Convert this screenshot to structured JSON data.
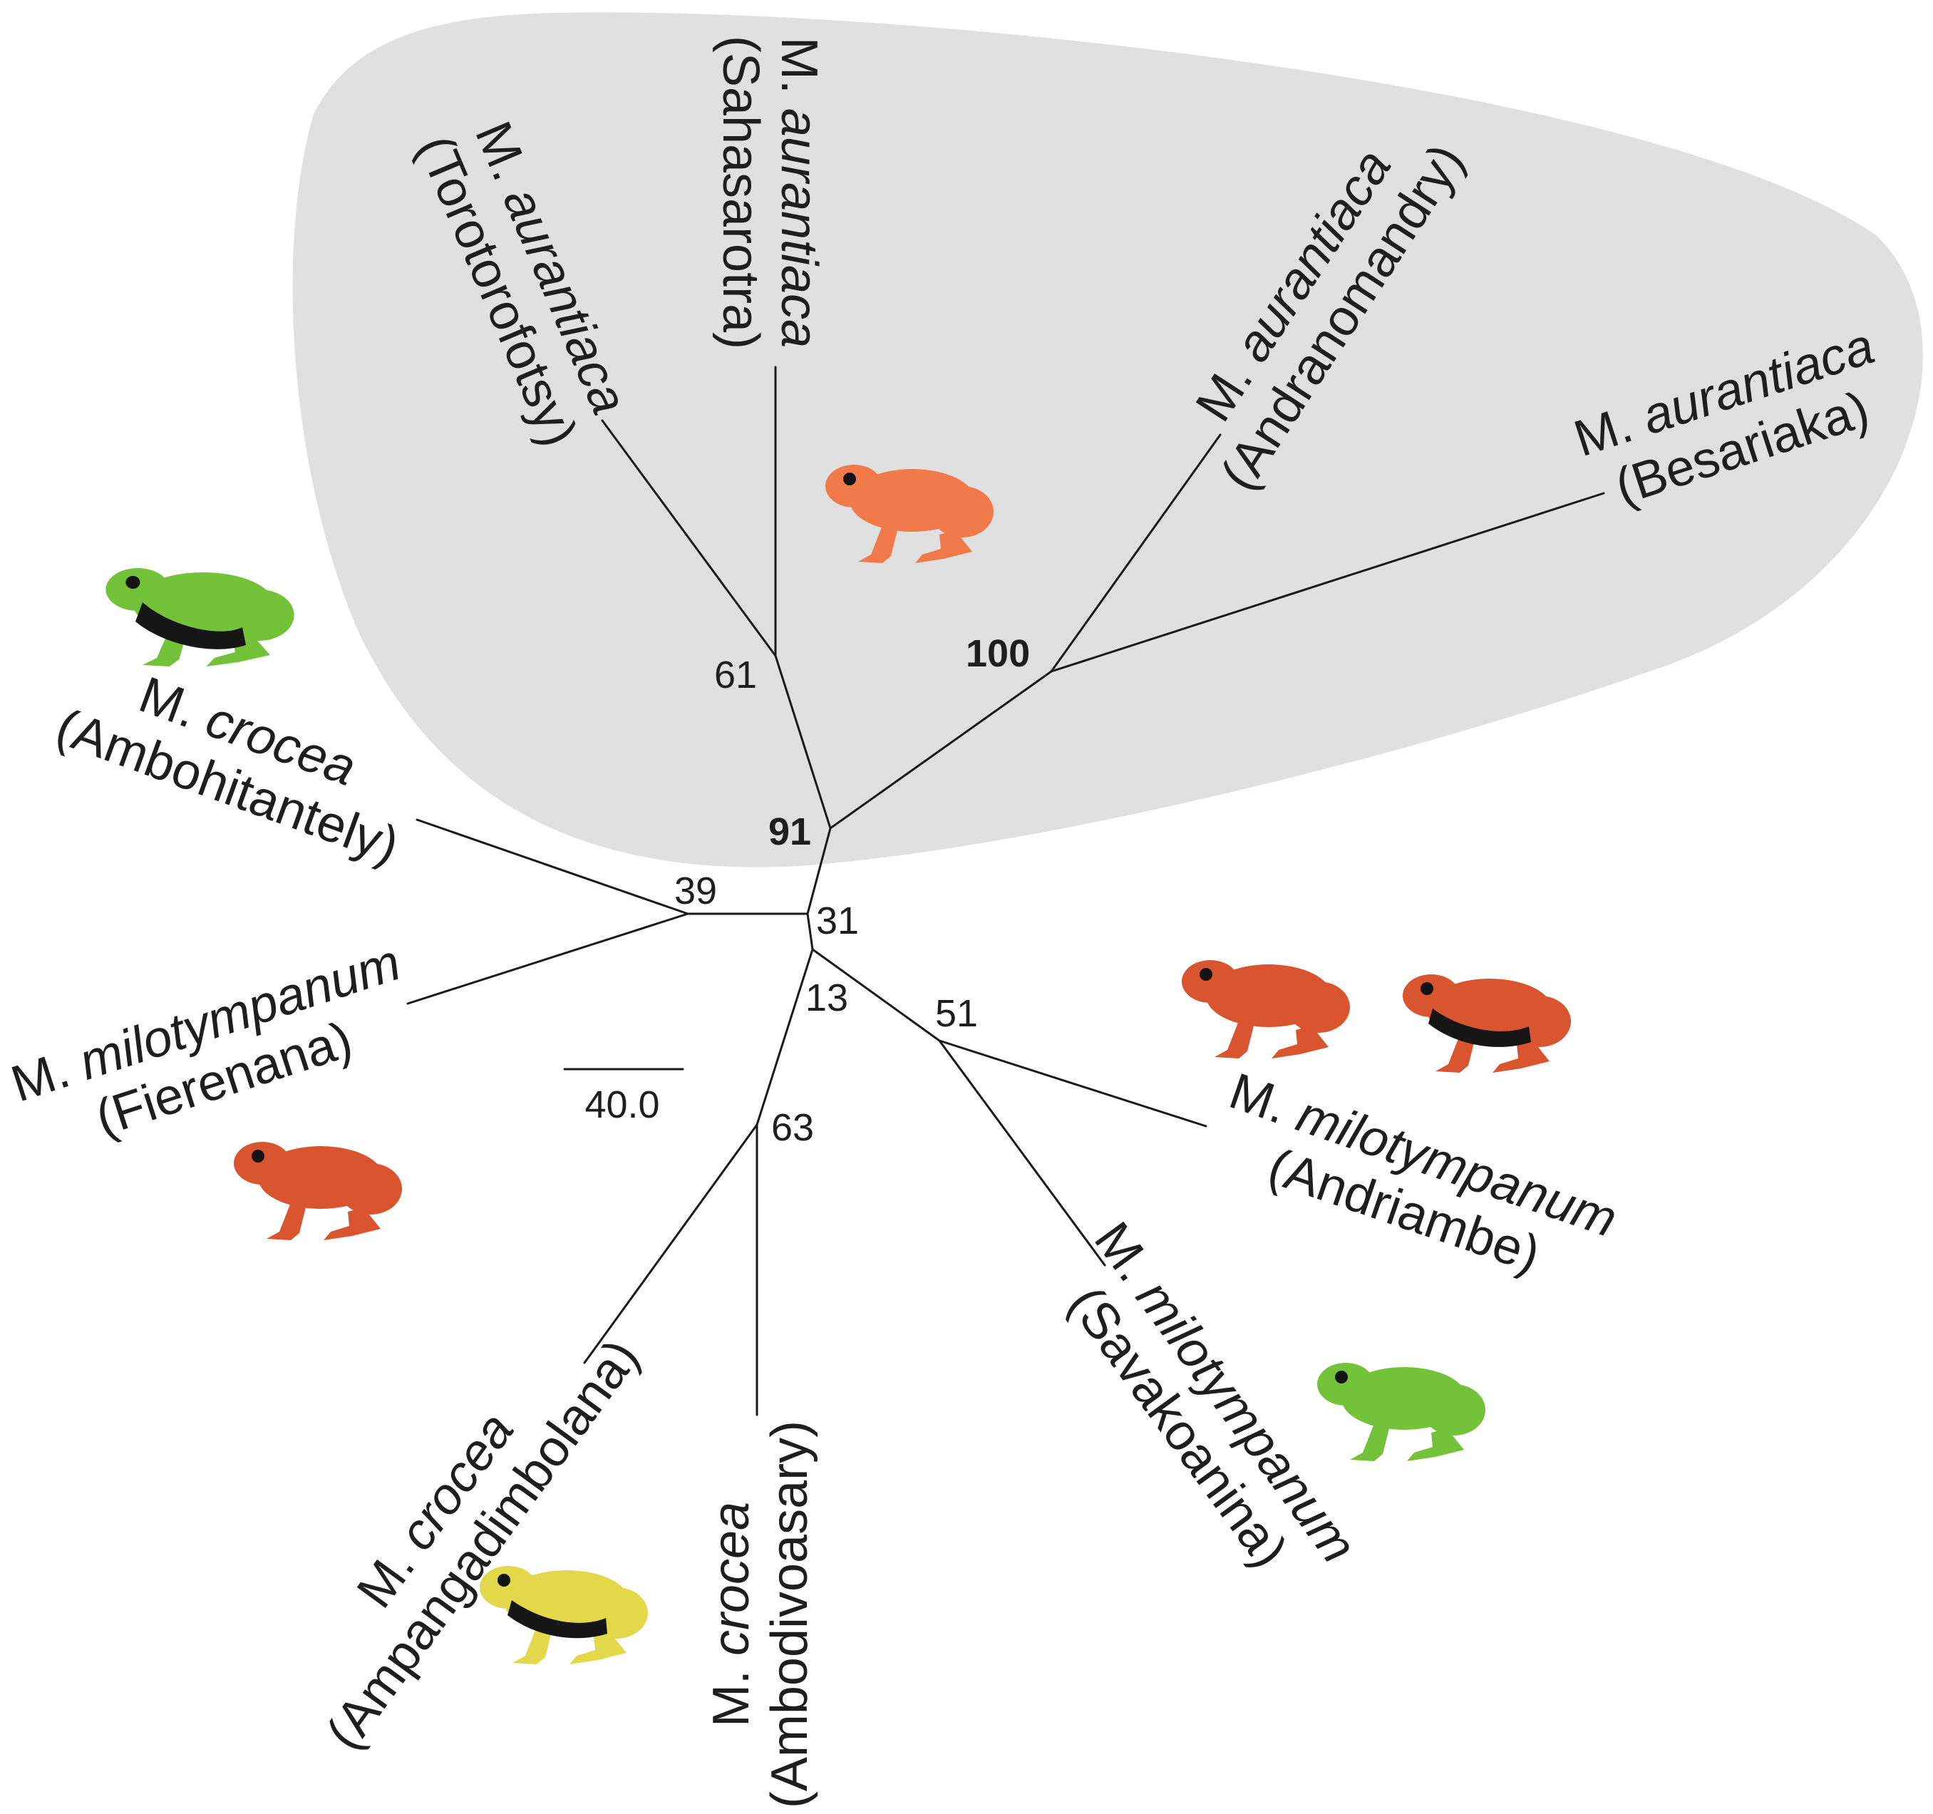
{
  "colors": {
    "clade_highlight": "#e0e0e0",
    "branch": "#1a1a1a",
    "frog_orange": "#f07a4a",
    "frog_red": "#d95530",
    "frog_green": "#74c23a",
    "frog_yellow": "#e2d84a",
    "frog_black": "#161616"
  },
  "taxa": [
    {
      "genus": "M.",
      "species": "aurantiaca",
      "locality": "(Torotorofotsy)"
    },
    {
      "genus": "M.",
      "species": "aurantiaca",
      "locality": "(Sahasarotra)"
    },
    {
      "genus": "M.",
      "species": "aurantiaca",
      "locality": "(Andranomandry)"
    },
    {
      "genus": "M.",
      "species": "aurantiaca",
      "locality": "(Besariaka)"
    },
    {
      "genus": "M.",
      "species": "crocea",
      "locality": "(Ambohitantely)"
    },
    {
      "genus": "M.",
      "species": "milotympanum",
      "locality": "(Fierenana)"
    },
    {
      "genus": "M.",
      "species": "crocea",
      "locality": "(Ampangadimbolana)"
    },
    {
      "genus": "M.",
      "species": "crocea",
      "locality": "(Ambodivoasary)"
    },
    {
      "genus": "M.",
      "species": "milotympanum",
      "locality": "(Savakoanina)"
    },
    {
      "genus": "M.",
      "species": "milotympanum",
      "locality": "(Andriambe)"
    }
  ],
  "support_values": [
    "61",
    "100",
    "91",
    "39",
    "31",
    "13",
    "51",
    "63"
  ],
  "scale_bar": {
    "label": "40.0"
  },
  "frog_icons": [
    "orange-frog-icon",
    "green-black-frog-icon",
    "red-frog-icon",
    "red-frog-icon",
    "red-black-frog-icon",
    "green-frog-icon",
    "yellow-frog-icon"
  ]
}
